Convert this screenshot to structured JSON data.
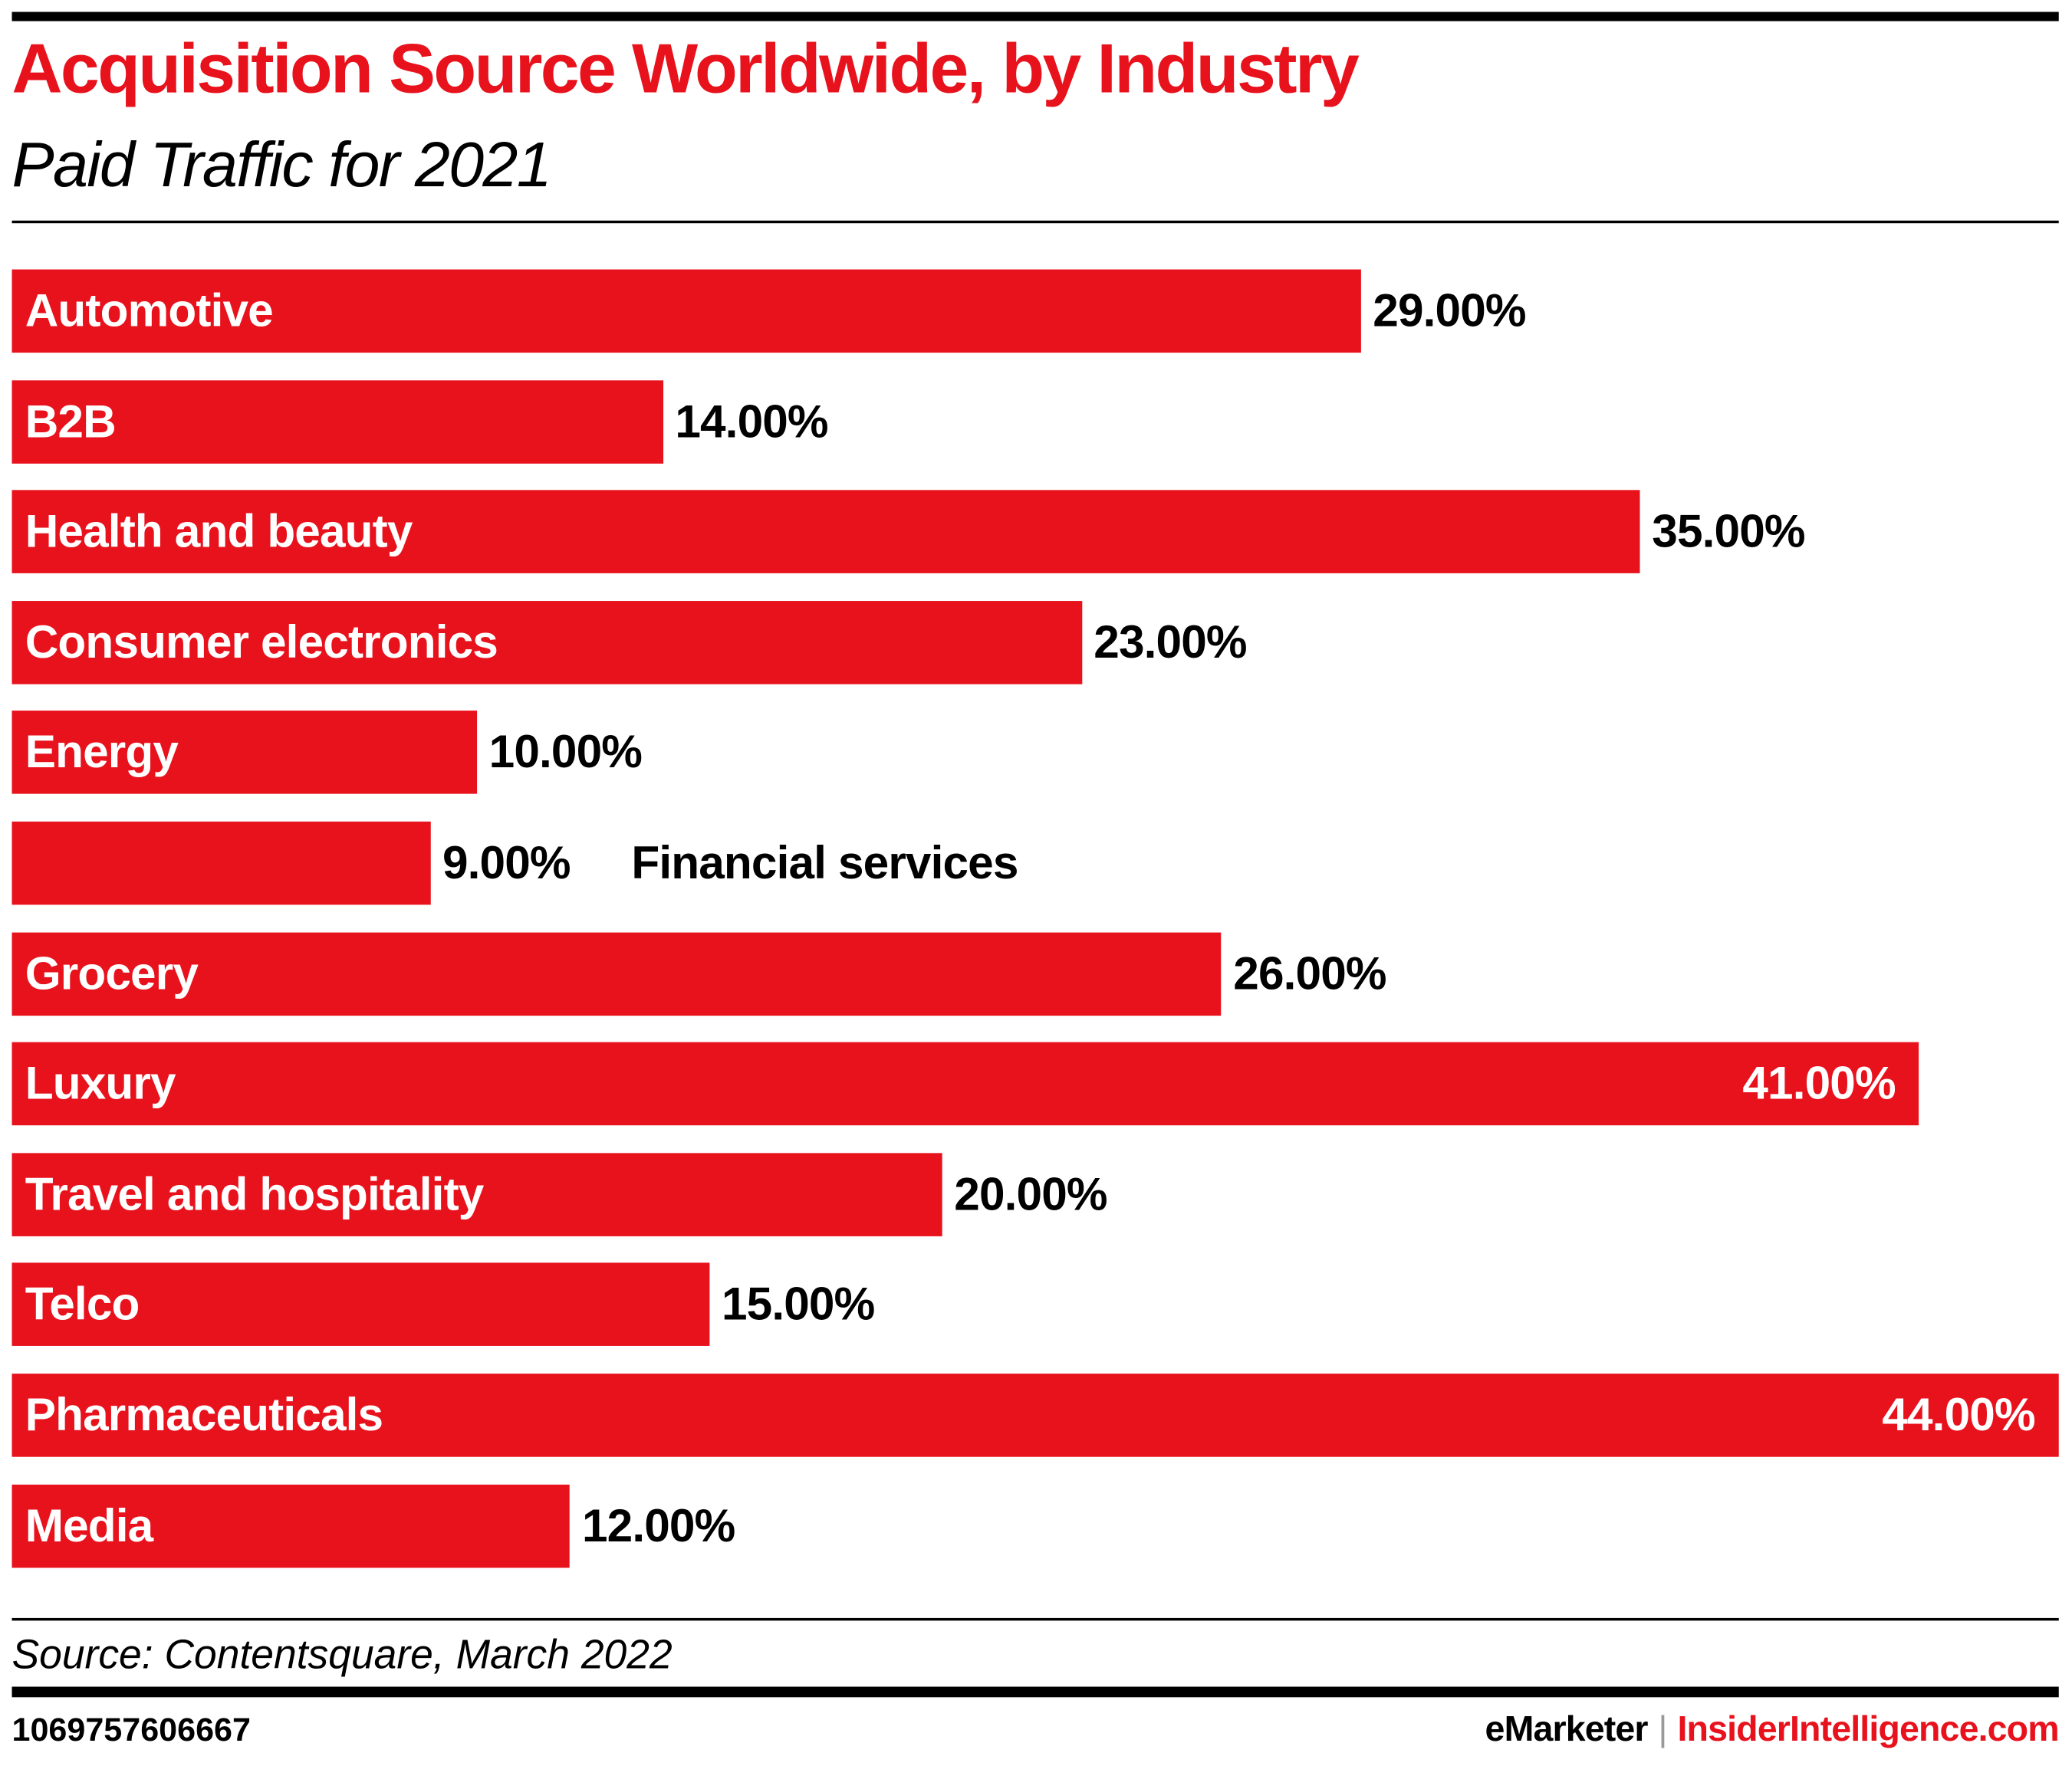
{
  "header": {
    "title": "Acquisition Source Worldwide, by Industry",
    "subtitle": "Paid Traffic for 2021"
  },
  "chart_data": {
    "type": "bar",
    "orientation": "horizontal",
    "title": "Acquisition Source Worldwide, by Industry",
    "subtitle": "Paid Traffic for 2021",
    "categories": [
      "Automotive",
      "B2B",
      "Health and beauty",
      "Consumer electronics",
      "Energy",
      "Financial services",
      "Grocery",
      "Luxury",
      "Travel and hospitality",
      "Telco",
      "Pharmaceuticals",
      "Media"
    ],
    "values": [
      29,
      14,
      35,
      23,
      10,
      9,
      26,
      41,
      20,
      15,
      44,
      12
    ],
    "value_labels": [
      "29.00%",
      "14.00%",
      "35.00%",
      "23.00%",
      "10.00%",
      "9.00%",
      "26.00%",
      "41.00%",
      "20.00%",
      "15.00%",
      "44.00%",
      "12.00%"
    ],
    "unit": "%",
    "xlim": [
      0,
      44
    ],
    "grid": false,
    "bar_color": "#e8121d"
  },
  "footer": {
    "source": "Source: Contentsquare, March 2022",
    "chart_id": "1069757606667",
    "brand_left": "eMarketer",
    "brand_separator": "|",
    "brand_right": "InsiderIntelligence.com"
  },
  "colors": {
    "accent": "#e8121d",
    "text": "#000000"
  }
}
